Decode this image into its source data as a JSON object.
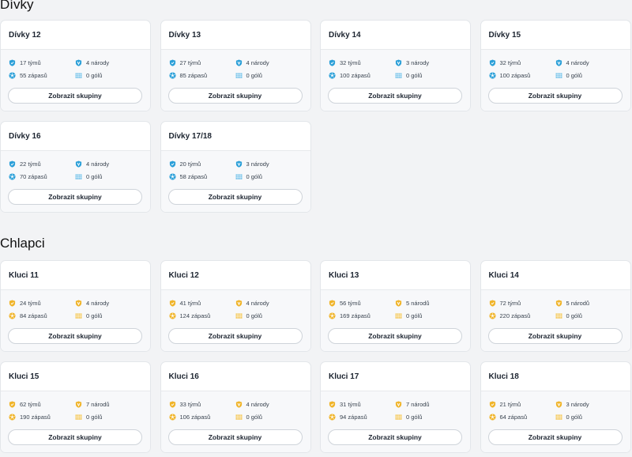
{
  "sections": [
    {
      "title": "Dívky",
      "theme": "blue",
      "cards": [
        {
          "name": "Dívky 12",
          "teams": "17 týmů",
          "nations": "4 národy",
          "matches": "55 zápasů",
          "goals": "0 gólů",
          "button": "Zobrazit skupiny"
        },
        {
          "name": "Dívky 13",
          "teams": "27 týmů",
          "nations": "4 národy",
          "matches": "85 zápasů",
          "goals": "0 gólů",
          "button": "Zobrazit skupiny"
        },
        {
          "name": "Dívky 14",
          "teams": "32 týmů",
          "nations": "3 národy",
          "matches": "100 zápasů",
          "goals": "0 gólů",
          "button": "Zobrazit skupiny"
        },
        {
          "name": "Dívky 15",
          "teams": "32 týmů",
          "nations": "4 národy",
          "matches": "100 zápasů",
          "goals": "0 gólů",
          "button": "Zobrazit skupiny"
        },
        {
          "name": "Dívky 16",
          "teams": "22 týmů",
          "nations": "4 národy",
          "matches": "70 zápasů",
          "goals": "0 gólů",
          "button": "Zobrazit skupiny"
        },
        {
          "name": "Dívky 17/18",
          "teams": "20 týmů",
          "nations": "3 národy",
          "matches": "58 zápasů",
          "goals": "0 gólů",
          "button": "Zobrazit skupiny"
        }
      ]
    },
    {
      "title": "Chlapci",
      "theme": "gold",
      "cards": [
        {
          "name": "Kluci 11",
          "teams": "24 týmů",
          "nations": "4 národy",
          "matches": "84 zápasů",
          "goals": "0 gólů",
          "button": "Zobrazit skupiny"
        },
        {
          "name": "Kluci 12",
          "teams": "41 týmů",
          "nations": "4 národy",
          "matches": "124 zápasů",
          "goals": "0 gólů",
          "button": "Zobrazit skupiny"
        },
        {
          "name": "Kluci 13",
          "teams": "56 týmů",
          "nations": "5 národů",
          "matches": "169 zápasů",
          "goals": "0 gólů",
          "button": "Zobrazit skupiny"
        },
        {
          "name": "Kluci 14",
          "teams": "72 týmů",
          "nations": "5 národů",
          "matches": "220 zápasů",
          "goals": "0 gólů",
          "button": "Zobrazit skupiny"
        },
        {
          "name": "Kluci 15",
          "teams": "62 týmů",
          "nations": "7 národů",
          "matches": "190 zápasů",
          "goals": "0 gólů",
          "button": "Zobrazit skupiny"
        },
        {
          "name": "Kluci 16",
          "teams": "33 týmů",
          "nations": "4 národy",
          "matches": "106 zápasů",
          "goals": "0 gólů",
          "button": "Zobrazit skupiny"
        },
        {
          "name": "Kluci 17",
          "teams": "31 týmů",
          "nations": "7 národů",
          "matches": "94 zápasů",
          "goals": "0 gólů",
          "button": "Zobrazit skupiny"
        },
        {
          "name": "Kluci 18",
          "teams": "21 týmů",
          "nations": "3 národy",
          "matches": "64 zápasů",
          "goals": "0 gólů",
          "button": "Zobrazit skupiny"
        }
      ]
    }
  ],
  "colors": {
    "blue": {
      "shield": "#2a9fd8",
      "ball": "#2a9fd8",
      "goal": "#7cc5ea"
    },
    "gold": {
      "shield": "#f0b429",
      "ball": "#f0b429",
      "goal": "#f4ca5f"
    },
    "background": "#f2f3f5"
  },
  "icons": {
    "teams": "shield-check-icon",
    "nations": "badge-v-icon",
    "matches": "soccer-ball-icon",
    "goals": "goal-net-icon"
  }
}
